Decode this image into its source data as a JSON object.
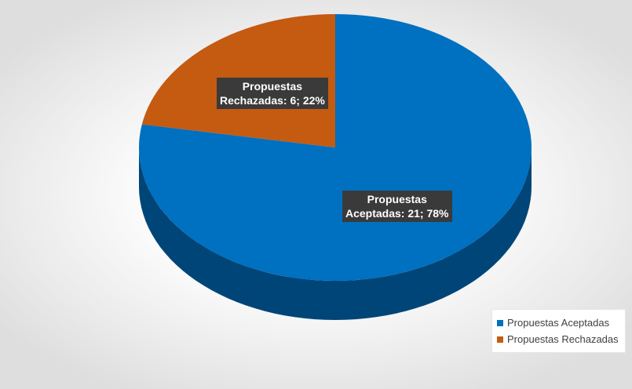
{
  "chart_data": {
    "type": "pie",
    "variant": "3d",
    "categories": [
      "Propuestas Aceptadas",
      "Propuestas Rechazadas"
    ],
    "values": [
      21,
      6
    ],
    "percentages": [
      78,
      22
    ],
    "colors": [
      "#0070C0",
      "#C55A11"
    ],
    "data_labels": [
      {
        "line1": "Propuestas",
        "line2": "Aceptadas: 21; 78%"
      },
      {
        "line1": "Propuestas",
        "line2": "Rechazadas: 6; 22%"
      }
    ],
    "legend": {
      "position": "bottom-right",
      "entries": [
        {
          "label": "Propuestas Aceptadas",
          "color": "#0070C0"
        },
        {
          "label": "Propuestas Rechazadas",
          "color": "#C55A11"
        }
      ]
    }
  }
}
